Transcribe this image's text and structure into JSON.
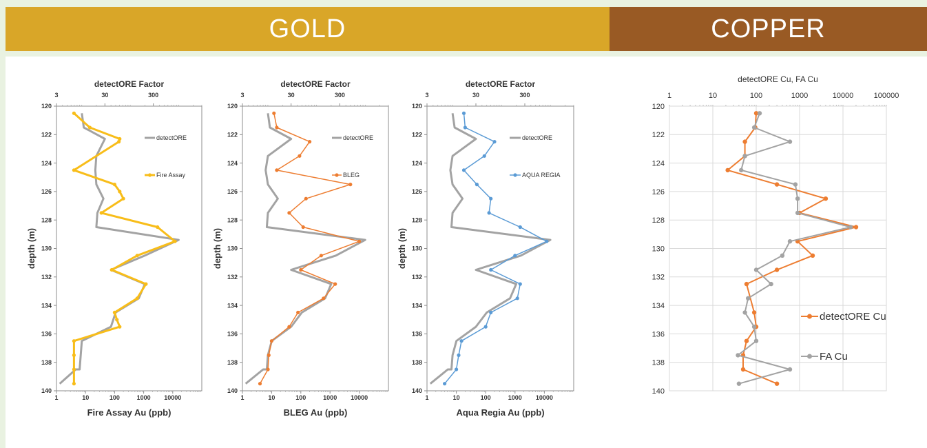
{
  "banners": {
    "gold": "GOLD",
    "copper": "COPPER"
  },
  "colors": {
    "gold_banner": "#d9a628",
    "copper_banner": "#995a24",
    "background": "#e9f2e1",
    "grey": "#a3a3a3",
    "fire_assay": "#f8bd19",
    "bleg": "#ed7d31",
    "aqua_regia": "#5b9bd5",
    "cu": "#ed7d31"
  },
  "chart_data": [
    {
      "type": "line",
      "title": "detectORE Factor",
      "xlabel": "Fire Assay Au (ppb)",
      "ylabel": "depth (m)",
      "x_scale": "log",
      "xlim": [
        1,
        100000
      ],
      "x_ticks": [
        "1",
        "10",
        "100",
        "1000",
        "10000"
      ],
      "top_scale": "log",
      "top_lim": [
        3,
        3000
      ],
      "top_ticks": [
        "3",
        "30",
        "300"
      ],
      "ylim": [
        120,
        140
      ],
      "y_inverted": true,
      "y_ticks": [
        "120",
        "122",
        "124",
        "126",
        "128",
        "130",
        "132",
        "134",
        "136",
        "138",
        "140"
      ],
      "series": [
        {
          "name": "detectORE",
          "axis": "top",
          "color": "#a3a3a3",
          "width": 3,
          "marker": false,
          "x": [
            10,
            11,
            30,
            20,
            19,
            20,
            28,
            21,
            20,
            1000,
            200,
            40,
            200,
            150,
            50,
            40,
            10,
            9.5,
            9,
            8,
            7.5,
            3.5
          ],
          "y": [
            120.5,
            121.5,
            122.3,
            123.5,
            124.5,
            125.5,
            126.5,
            127.5,
            128.5,
            129.4,
            130.5,
            131.5,
            132.5,
            133.5,
            134.5,
            135.5,
            136.5,
            137.5,
            138.5,
            138.5,
            138.5,
            139.5
          ]
        },
        {
          "name": "Fire Assay",
          "axis": "bottom",
          "color": "#f8bd19",
          "width": 3,
          "marker": true,
          "x": [
            4,
            14,
            150,
            140,
            4,
            100,
            150,
            200,
            35,
            3000,
            12000,
            600,
            80,
            1200,
            600,
            100,
            120,
            150,
            4,
            4,
            4,
            4
          ],
          "y": [
            120.5,
            121.5,
            122.3,
            122.5,
            124.5,
            125.5,
            126,
            126.5,
            127.5,
            128.5,
            129.5,
            130.5,
            131.5,
            132.5,
            133.5,
            134.5,
            135,
            135.5,
            136.5,
            137.5,
            138.5,
            139.5
          ]
        }
      ],
      "legend": [
        {
          "name": "detectORE",
          "placement": "upper"
        },
        {
          "name": "Fire Assay",
          "placement": "middle"
        }
      ]
    },
    {
      "type": "line",
      "title": "detectORE Factor",
      "xlabel": "BLEG Au (ppb)",
      "ylabel": "depth (m)",
      "x_scale": "log",
      "xlim": [
        1,
        100000
      ],
      "x_ticks": [
        "1",
        "10",
        "100",
        "1000",
        "10000"
      ],
      "top_scale": "log",
      "top_lim": [
        3,
        3000
      ],
      "top_ticks": [
        "3",
        "30",
        "300"
      ],
      "ylim": [
        120,
        140
      ],
      "y_inverted": true,
      "y_ticks": [
        "120",
        "122",
        "124",
        "126",
        "128",
        "130",
        "132",
        "134",
        "136",
        "138",
        "140"
      ],
      "series": [
        {
          "name": "detectORE",
          "axis": "top",
          "color": "#a3a3a3",
          "width": 3,
          "marker": false,
          "x": [
            10,
            11,
            30,
            10,
            9,
            10,
            16,
            10,
            9.5,
            1000,
            250,
            30,
            200,
            150,
            50,
            30,
            12,
            10,
            9.5,
            9,
            8,
            3.5
          ],
          "y": [
            120.5,
            121.5,
            122.3,
            123.5,
            124.5,
            125.5,
            126.5,
            127.5,
            128.5,
            129.4,
            130.5,
            131.5,
            132.5,
            133.5,
            134.5,
            135.5,
            136.5,
            137.5,
            138.5,
            138.5,
            138.5,
            139.5
          ]
        },
        {
          "name": "BLEG",
          "axis": "bottom",
          "color": "#ed7d31",
          "width": 1.5,
          "marker": true,
          "x": [
            12,
            15,
            200,
            90,
            15,
            5000,
            150,
            40,
            120,
            10000,
            500,
            100,
            1500,
            600,
            80,
            40,
            10,
            8,
            7.5,
            4
          ],
          "y": [
            120.5,
            121.5,
            122.5,
            123.5,
            124.5,
            125.5,
            126.5,
            127.5,
            128.5,
            129.5,
            130.5,
            131.5,
            132.5,
            133.5,
            134.5,
            135.5,
            136.5,
            137.5,
            138.5,
            139.5
          ]
        }
      ],
      "legend": [
        {
          "name": "detectORE",
          "placement": "upper"
        },
        {
          "name": "BLEG",
          "placement": "middle"
        }
      ]
    },
    {
      "type": "line",
      "title": "detectORE Factor",
      "xlabel": "Aqua Regia Au (ppb)",
      "ylabel": "depth (m)",
      "x_scale": "log",
      "xlim": [
        1,
        100000
      ],
      "x_ticks": [
        "1",
        "10",
        "100",
        "1000",
        "10000"
      ],
      "top_scale": "log",
      "top_lim": [
        3,
        3000
      ],
      "top_ticks": [
        "3",
        "30",
        "300"
      ],
      "ylim": [
        120,
        140
      ],
      "y_inverted": true,
      "y_ticks": [
        "120",
        "122",
        "124",
        "126",
        "128",
        "130",
        "132",
        "134",
        "136",
        "138",
        "140"
      ],
      "series": [
        {
          "name": "detectORE",
          "axis": "top",
          "color": "#a3a3a3",
          "width": 3,
          "marker": false,
          "x": [
            10,
            11,
            30,
            10,
            9,
            10,
            16,
            10,
            9.5,
            1000,
            250,
            30,
            200,
            150,
            50,
            30,
            12,
            10,
            9.5,
            9,
            8,
            3.5
          ],
          "y": [
            120.5,
            121.5,
            122.3,
            123.5,
            124.5,
            125.5,
            126.5,
            127.5,
            128.5,
            129.4,
            130.5,
            131.5,
            132.5,
            133.5,
            134.5,
            135.5,
            136.5,
            137.5,
            138.5,
            138.5,
            138.5,
            139.5
          ]
        },
        {
          "name": "AQUA REGIA",
          "axis": "bottom",
          "color": "#5b9bd5",
          "width": 1.5,
          "marker": true,
          "x": [
            18,
            20,
            200,
            90,
            18,
            50,
            150,
            130,
            1500,
            12000,
            1000,
            150,
            1500,
            1200,
            150,
            100,
            15,
            12,
            10,
            4
          ],
          "y": [
            120.5,
            121.5,
            122.5,
            123.5,
            124.5,
            125.5,
            126.5,
            127.5,
            128.5,
            129.5,
            130.5,
            131.5,
            132.5,
            133.5,
            134.5,
            135.5,
            136.5,
            137.5,
            138.5,
            139.5
          ]
        }
      ],
      "legend": [
        {
          "name": "detectORE",
          "placement": "upper"
        },
        {
          "name": "AQUA REGIA",
          "placement": "middle"
        }
      ]
    },
    {
      "type": "line",
      "title": "detectORE Cu, FA Cu",
      "xlabel": "",
      "ylabel": "",
      "top_scale": "log",
      "top_lim": [
        1,
        100000
      ],
      "top_ticks": [
        "1",
        "10",
        "100",
        "1000",
        "10000",
        "100000"
      ],
      "ylim": [
        120,
        140
      ],
      "y_inverted": true,
      "y_ticks": [
        "120",
        "122",
        "124",
        "126",
        "128",
        "130",
        "132",
        "134",
        "136",
        "138",
        "140"
      ],
      "grid": true,
      "series": [
        {
          "name": "detectORE Cu",
          "axis": "top",
          "color": "#ed7d31",
          "width": 2,
          "marker": true,
          "x": [
            100,
            95,
            55,
            55,
            22,
            300,
            4000,
            1000,
            20000,
            900,
            2000,
            300,
            60,
            90,
            100,
            60,
            50,
            50,
            300
          ],
          "y": [
            120.5,
            121.5,
            122.5,
            123.5,
            124.5,
            125.5,
            126.5,
            127.5,
            128.5,
            129.5,
            130.5,
            131.5,
            132.5,
            134.5,
            135.5,
            136.5,
            137.5,
            138.5,
            139.5
          ]
        },
        {
          "name": "FA Cu",
          "axis": "top",
          "color": "#a3a3a3",
          "width": 2,
          "marker": true,
          "x": [
            120,
            90,
            600,
            55,
            45,
            800,
            900,
            900,
            15000,
            600,
            400,
            100,
            220,
            65,
            55,
            90,
            100,
            38,
            600,
            40
          ],
          "y": [
            120.5,
            121.5,
            122.5,
            123.5,
            124.5,
            125.5,
            126.5,
            127.5,
            128.5,
            129.5,
            130.5,
            131.5,
            132.5,
            133.5,
            134.5,
            135.5,
            136.5,
            137.5,
            138.5,
            139.5
          ]
        }
      ],
      "legend": [
        {
          "name": "detectORE Cu",
          "placement": "right-middle"
        },
        {
          "name": "FA Cu",
          "placement": "right-lower"
        }
      ]
    }
  ]
}
